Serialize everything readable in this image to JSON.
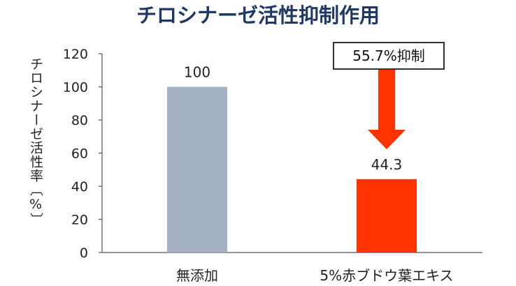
{
  "chart_data": {
    "type": "bar",
    "title": "チロシナーゼ活性抑制作用",
    "ylabel": "チロシナーゼ活性率〔%〕",
    "xlabel": "",
    "categories": [
      "無添加",
      "5%赤ブドウ葉エキス"
    ],
    "values": [
      100,
      44.3
    ],
    "data_labels": [
      "100",
      "44.3"
    ],
    "bar_colors": [
      "#a3b1c2",
      "#ff3300"
    ],
    "ylim": [
      0,
      120
    ],
    "yticks": [
      0,
      20,
      40,
      60,
      80,
      100,
      120
    ],
    "grid": false,
    "annotation": {
      "text": "55.7%抑制",
      "arrow_color": "#ff3300"
    }
  }
}
